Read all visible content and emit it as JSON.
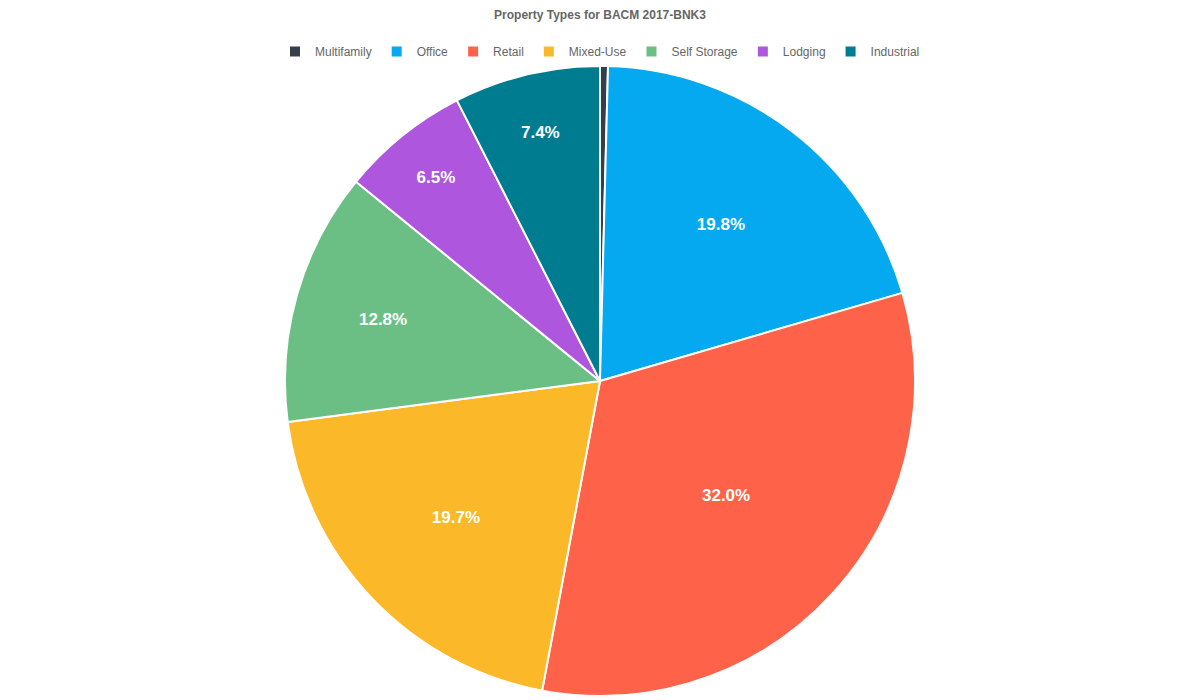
{
  "chart_data": {
    "type": "pie",
    "title": "Property Types for BACM 2017-BNK3",
    "categories": [
      "Multifamily",
      "Office",
      "Retail",
      "Mixed-Use",
      "Self Storage",
      "Lodging",
      "Industrial"
    ],
    "values": [
      0.4,
      19.8,
      32.0,
      19.7,
      12.8,
      6.5,
      7.4
    ],
    "value_labels": [
      null,
      "19.8%",
      "32.0%",
      "19.7%",
      "12.8%",
      "6.5%",
      "7.4%"
    ],
    "colors": [
      "#343f4b",
      "#04a9f0",
      "#fe6249",
      "#fbb829",
      "#6cbf84",
      "#ae56dd",
      "#007c91"
    ],
    "data_labels": true,
    "legend": "top"
  }
}
